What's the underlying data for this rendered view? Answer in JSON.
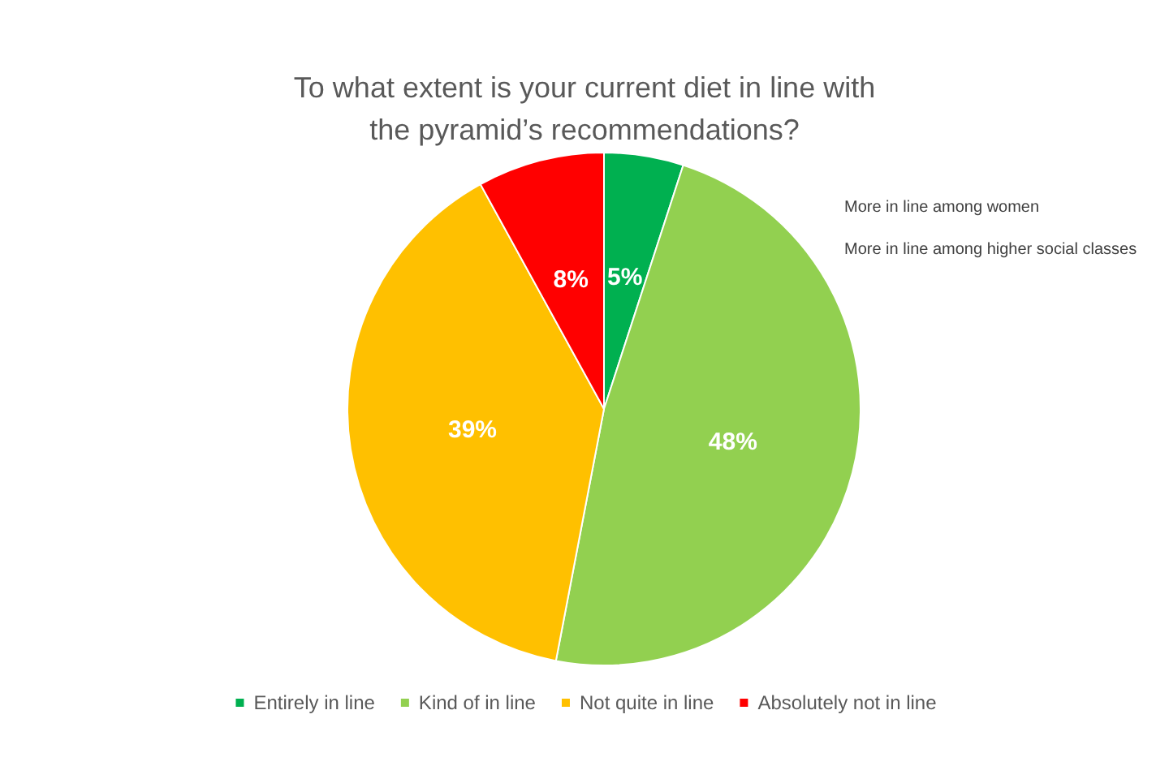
{
  "chart_data": {
    "type": "pie",
    "title": "To what extent is your current diet in line with\nthe pyramid’s recommendations?",
    "categories": [
      "Entirely in line",
      "Kind of in line",
      "Not quite in line",
      "Absolutely not in line"
    ],
    "values": [
      5,
      48,
      39,
      8
    ],
    "value_labels": [
      "5%",
      "48%",
      "39%",
      "8%"
    ],
    "colors": [
      "#00b050",
      "#92d050",
      "#ffc000",
      "#ff0000"
    ],
    "legend": "bottom",
    "annotations": [
      "More in line among women",
      "More in line among higher social classes"
    ]
  }
}
